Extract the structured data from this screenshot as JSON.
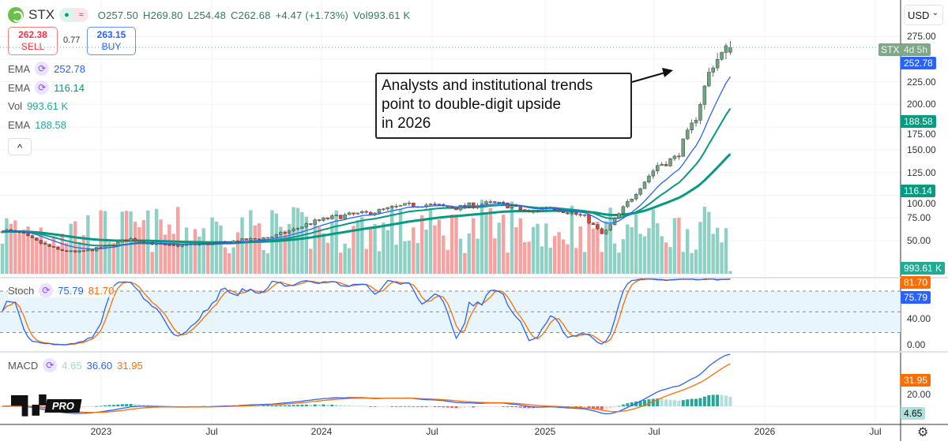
{
  "header": {
    "symbol": "STX",
    "open": "O257.50",
    "high": "H269.80",
    "low": "L254.48",
    "close": "C262.68",
    "change": "+4.47 (+1.73%)",
    "volume": "Vol993.61 K",
    "market_open_dot": "●",
    "delay_icon": "≈"
  },
  "trade": {
    "sell_price": "262.38",
    "sell_label": "SELL",
    "spread": "0.77",
    "buy_price": "263.15",
    "buy_label": "BUY"
  },
  "indicators": {
    "ema1": {
      "label": "EMA",
      "value": "252.78",
      "color": "#2962ff"
    },
    "ema2": {
      "label": "EMA",
      "value": "116.14",
      "color": "#089981"
    },
    "vol": {
      "label": "Vol",
      "value": "993.61 K"
    },
    "ema3": {
      "label": "EMA",
      "value": "188.58",
      "color": "#089981"
    },
    "collapse": "^",
    "stoch": {
      "label": "Stoch",
      "k": "75.79",
      "d": "81.70"
    },
    "macd": {
      "label": "MACD",
      "hist": "4.65",
      "macd": "36.60",
      "signal": "31.95"
    }
  },
  "currency": "USD",
  "annotation": "Analysts and institutional trends point to double-digit upside in 2026",
  "watermark": "PRO",
  "badges": {
    "symbol": "STX",
    "countdown": "4d 5h",
    "ema1": "252.78",
    "ema3": "188.58",
    "ema2": "116.14",
    "vol": "993.61 K",
    "stoch_d": "81.70",
    "stoch_k": "75.79",
    "macd_signal": "31.95",
    "macd_hist": "4.65"
  },
  "colors": {
    "up": "#6aa77f",
    "down": "#d9453b",
    "vol_up": "#8fd0c4",
    "vol_down": "#f7a1a1",
    "ema_fast": "#2962ff",
    "ema_mid": "#089981",
    "ema_slow": "#089981",
    "stoch_k": "#2962ff",
    "stoch_d": "#ff6d00"
  },
  "chart_data": {
    "type": "candlestick",
    "interval": "weekly",
    "symbol": "STX",
    "price_ticks": [
      "275.00",
      "225.00",
      "200.00",
      "175.00",
      "150.00",
      "125.00",
      "100.00",
      "75.00",
      "50.00"
    ],
    "stoch_ticks": [
      "40.00",
      "0.00"
    ],
    "macd_ticks": [
      "20.00"
    ],
    "time_ticks": [
      "2023",
      "Jul",
      "2024",
      "Jul",
      "2025",
      "Jul",
      "2026",
      "Jul"
    ],
    "monthly_close_approx": {
      "months": [
        "2022-07",
        "2022-08",
        "2022-09",
        "2022-10",
        "2022-11",
        "2022-12",
        "2023-01",
        "2023-02",
        "2023-03",
        "2023-04",
        "2023-05",
        "2023-06",
        "2023-07",
        "2023-08",
        "2023-09",
        "2023-10",
        "2023-11",
        "2023-12",
        "2024-01",
        "2024-02",
        "2024-03",
        "2024-04",
        "2024-05",
        "2024-06",
        "2024-07",
        "2024-08",
        "2024-09",
        "2024-10",
        "2024-11",
        "2024-12",
        "2025-01",
        "2025-02",
        "2025-03",
        "2025-04",
        "2025-05",
        "2025-06",
        "2025-07",
        "2025-08",
        "2025-09",
        "2025-10",
        "2025-11"
      ],
      "close": [
        62,
        58,
        48,
        40,
        37,
        40,
        45,
        52,
        48,
        44,
        45,
        46,
        47,
        50,
        52,
        55,
        62,
        70,
        75,
        78,
        80,
        84,
        88,
        90,
        88,
        86,
        90,
        91,
        88,
        80,
        88,
        82,
        76,
        56,
        82,
        109,
        133,
        141,
        180,
        245,
        262.68
      ]
    },
    "last": {
      "open": 257.5,
      "high": 269.8,
      "low": 254.48,
      "close": 262.68,
      "volume": "993.61 K"
    },
    "ylim": [
      40,
      300
    ]
  }
}
